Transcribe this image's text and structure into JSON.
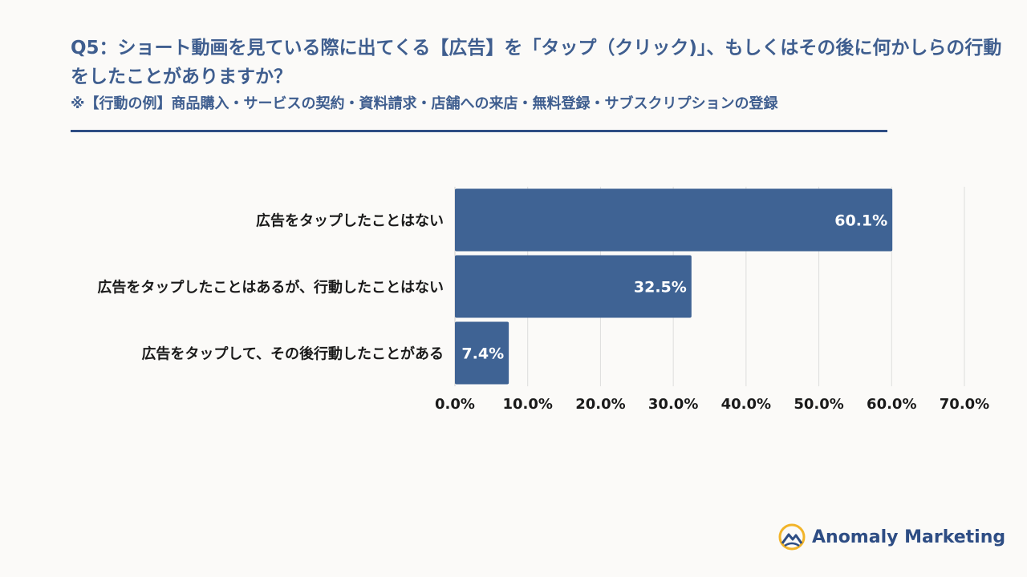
{
  "header": {
    "title": "Q5：ショート動画を見ている際に出てくる【広告】を「タップ（クリック)」、もしくはその後に何かしらの行動をしたことがありますか？",
    "subtitle": "※【行動の例】商品購入・サービスの契約・資料請求・店舗への来店・無料登録・サブスクリプションの登録"
  },
  "colors": {
    "bar": "#3f6394",
    "title": "#3f5e8f",
    "rule": "#2e4d84",
    "grid": "#dddddd",
    "logo_accent": "#f2b429"
  },
  "chart_data": {
    "type": "bar",
    "orientation": "horizontal",
    "categories": [
      "広告をタップしたことはない",
      "広告をタップしたことはあるが、行動したことはない",
      "広告をタップして、その後行動したことがある"
    ],
    "values": [
      60.1,
      32.5,
      7.4
    ],
    "value_labels": [
      "60.1%",
      "32.5%",
      "7.4%"
    ],
    "xlim": [
      0,
      70
    ],
    "xticks": [
      0,
      10,
      20,
      30,
      40,
      50,
      60,
      70
    ],
    "xtick_labels": [
      "0.0%",
      "10.0%",
      "20.0%",
      "30.0%",
      "40.0%",
      "50.0%",
      "60.0%",
      "70.0%"
    ],
    "grid": true,
    "legend": "none"
  },
  "logo": {
    "name": "Anomaly Marketing",
    "icon": "mountain-logo-icon"
  }
}
